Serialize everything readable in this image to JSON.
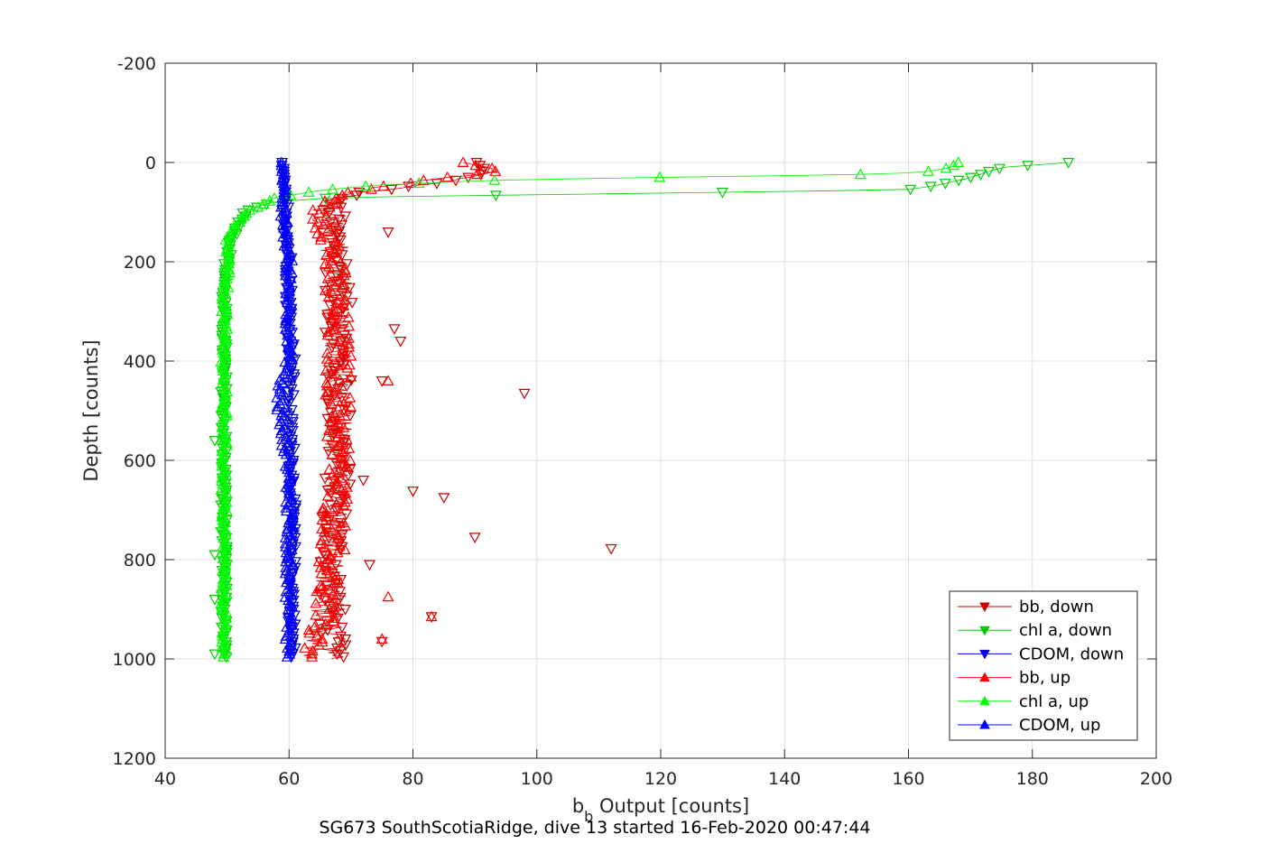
{
  "chart_data": {
    "type": "scatter",
    "xlabel_main": "b",
    "xlabel_sub": "b",
    "xlabel_rest": " Output [counts]",
    "ylabel": "Depth [counts]",
    "caption": "SG673 SouthScotiaRidge, dive 13 started 16-Feb-2020 00:47:44",
    "xlim": [
      40,
      200
    ],
    "ylim": [
      -200,
      1200
    ],
    "y_reversed": true,
    "grid": true,
    "legend_position": "bottom-right",
    "x_ticks": [
      "40",
      "60",
      "80",
      "100",
      "120",
      "140",
      "160",
      "180",
      "200"
    ],
    "y_ticks": [
      "-200",
      "0",
      "200",
      "400",
      "600",
      "800",
      "1000",
      "1200"
    ],
    "series": [
      {
        "name": "bb, down",
        "color": "#cc0000",
        "marker": "triangle-down",
        "profile": [
          [
            0,
            90
          ],
          [
            20,
            92
          ],
          [
            40,
            85
          ],
          [
            60,
            72
          ],
          [
            80,
            67
          ],
          [
            120,
            67
          ],
          [
            200,
            68
          ],
          [
            400,
            68
          ],
          [
            600,
            68
          ],
          [
            800,
            67
          ],
          [
            1000,
            67
          ]
        ],
        "outliers": [
          [
            98,
            465
          ],
          [
            80,
            662
          ],
          [
            85,
            675
          ],
          [
            90,
            755
          ],
          [
            112,
            778
          ],
          [
            83,
            915
          ],
          [
            75,
            965
          ],
          [
            76,
            140
          ],
          [
            77,
            335
          ],
          [
            78,
            360
          ],
          [
            75,
            440
          ],
          [
            72,
            640
          ],
          [
            73,
            810
          ]
        ]
      },
      {
        "name": "chl a, down",
        "color": "#00cc00",
        "marker": "triangle-down",
        "profile": [
          [
            0,
            186
          ],
          [
            10,
            175
          ],
          [
            30,
            170
          ],
          [
            45,
            165
          ],
          [
            55,
            160
          ],
          [
            60,
            130
          ],
          [
            65,
            100
          ],
          [
            68,
            80
          ],
          [
            72,
            66
          ],
          [
            80,
            57
          ],
          [
            100,
            53
          ],
          [
            150,
            51
          ],
          [
            200,
            50
          ],
          [
            250,
            49.5
          ],
          [
            400,
            49.5
          ],
          [
            700,
            49.5
          ],
          [
            1000,
            49.5
          ]
        ],
        "outliers": [
          [
            48,
            990
          ],
          [
            48,
            880
          ],
          [
            48,
            790
          ],
          [
            49,
            690
          ],
          [
            48,
            560
          ]
        ]
      },
      {
        "name": "CDOM, down",
        "color": "#0000cc",
        "marker": "triangle-down",
        "profile": [
          [
            0,
            59
          ],
          [
            100,
            59.5
          ],
          [
            200,
            60
          ],
          [
            300,
            60
          ],
          [
            400,
            60.5
          ],
          [
            500,
            60
          ],
          [
            600,
            60.5
          ],
          [
            800,
            60.5
          ],
          [
            1000,
            60.5
          ]
        ],
        "outliers": []
      },
      {
        "name": "bb, up",
        "color": "#ff0000",
        "marker": "triangle-up",
        "profile": [
          [
            0,
            88
          ],
          [
            10,
            92
          ],
          [
            20,
            93
          ],
          [
            30,
            86
          ],
          [
            40,
            80
          ],
          [
            55,
            72
          ],
          [
            70,
            67
          ],
          [
            100,
            65
          ],
          [
            150,
            67
          ],
          [
            200,
            67
          ],
          [
            400,
            68
          ],
          [
            600,
            68
          ],
          [
            800,
            67
          ],
          [
            1000,
            64
          ]
        ],
        "outliers": [
          [
            76,
            875
          ],
          [
            75,
            960
          ],
          [
            76,
            440
          ],
          [
            83,
            915
          ]
        ]
      },
      {
        "name": "chl a, up",
        "color": "#00ff00",
        "marker": "triangle-up",
        "profile": [
          [
            0,
            168
          ],
          [
            10,
            167
          ],
          [
            20,
            162
          ],
          [
            25,
            150
          ],
          [
            30,
            120
          ],
          [
            35,
            95
          ],
          [
            40,
            85
          ],
          [
            45,
            75
          ],
          [
            55,
            66
          ],
          [
            70,
            58
          ],
          [
            100,
            53
          ],
          [
            130,
            51
          ],
          [
            160,
            50
          ],
          [
            200,
            50
          ],
          [
            300,
            49.5
          ],
          [
            500,
            49.5
          ],
          [
            700,
            49.5
          ],
          [
            1000,
            49.5
          ]
        ],
        "outliers": []
      },
      {
        "name": "CDOM, up",
        "color": "#0000ff",
        "marker": "triangle-up",
        "profile": [
          [
            0,
            59
          ],
          [
            100,
            59
          ],
          [
            150,
            59.5
          ],
          [
            200,
            60
          ],
          [
            400,
            60
          ],
          [
            450,
            58.5
          ],
          [
            500,
            58.5
          ],
          [
            550,
            59
          ],
          [
            600,
            60
          ],
          [
            800,
            60
          ],
          [
            1000,
            60
          ]
        ],
        "outliers": []
      }
    ]
  }
}
